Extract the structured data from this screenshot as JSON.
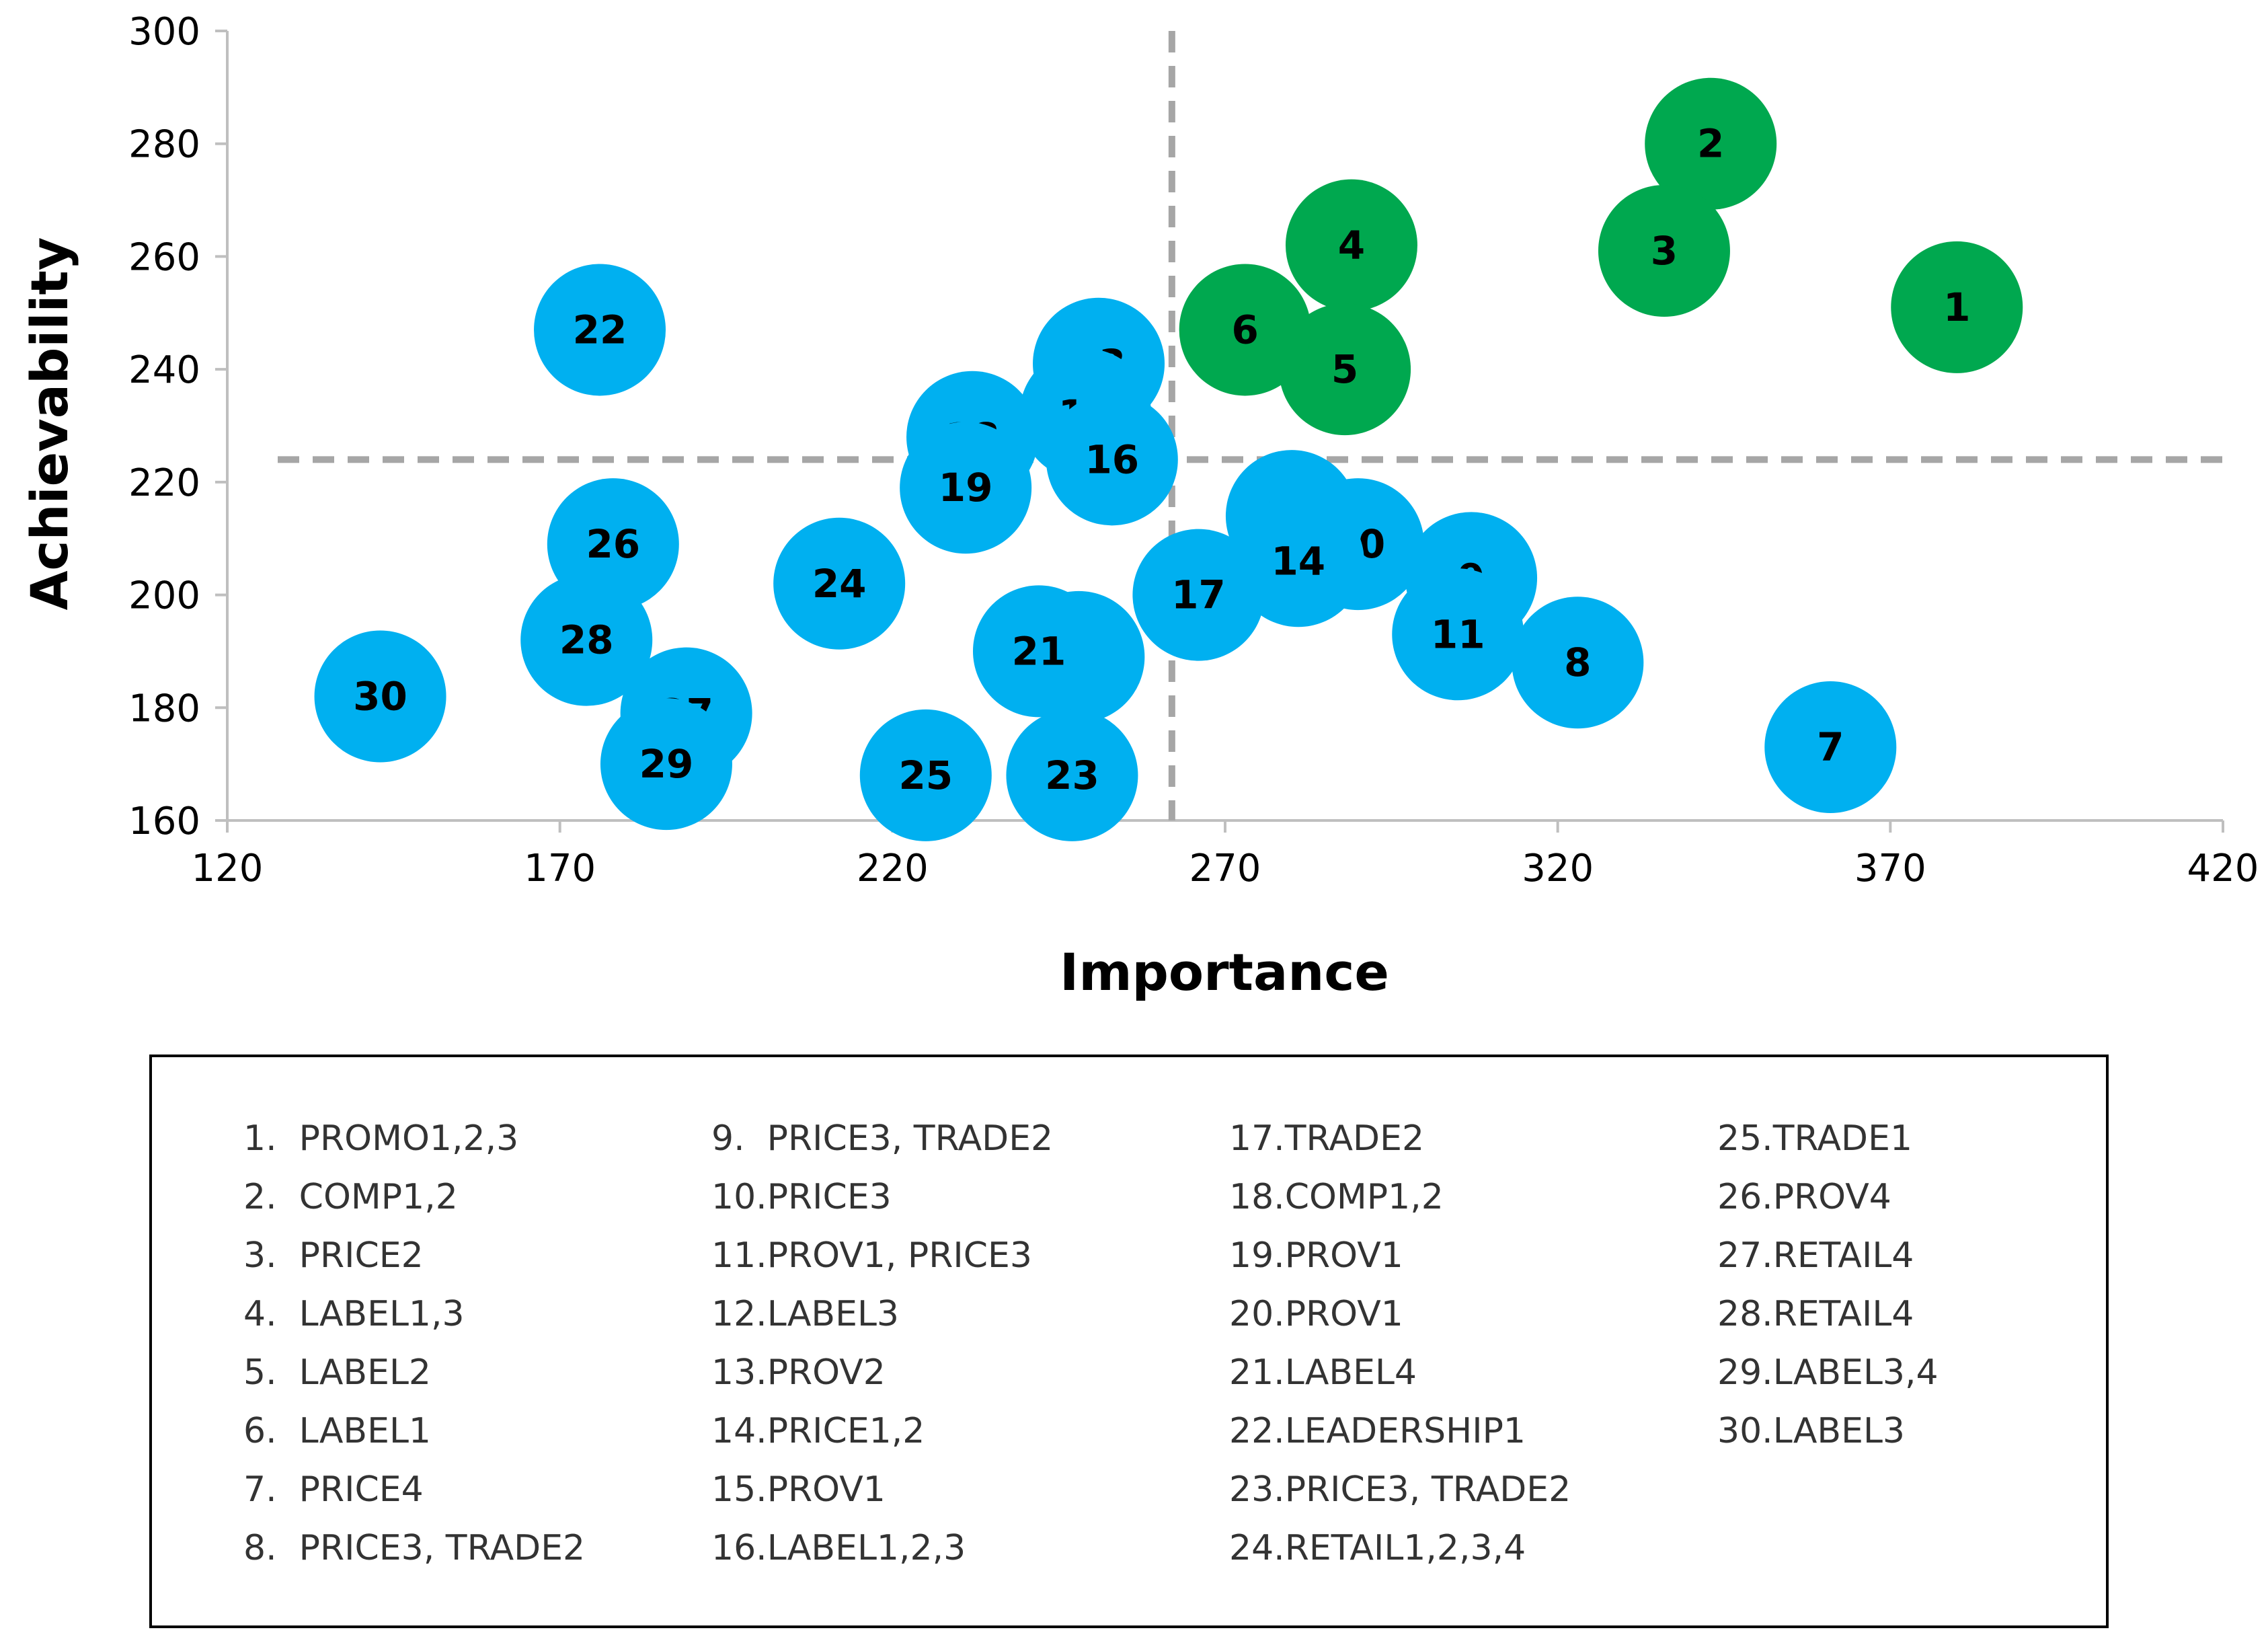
{
  "chart_data": {
    "type": "scatter",
    "subtype": "bubble",
    "xlabel": "Importance",
    "ylabel": "Achievability",
    "xlim": [
      120,
      420
    ],
    "ylim": [
      160,
      300
    ],
    "xticks": [
      "120",
      "170",
      "220",
      "270",
      "320",
      "370",
      "420"
    ],
    "yticks": [
      "160",
      "180",
      "200",
      "220",
      "240",
      "260",
      "280",
      "300"
    ],
    "reference_lines": {
      "x": 262,
      "y": 224
    },
    "colors": {
      "high": "#00a84f",
      "low": "#00b0f0",
      "refline": "#a6a6a6",
      "axis": "#bfbfbf"
    },
    "points": [
      {
        "id": "1",
        "x": 380,
        "y": 251,
        "group": "high"
      },
      {
        "id": "2",
        "x": 343,
        "y": 280,
        "group": "high"
      },
      {
        "id": "3",
        "x": 336,
        "y": 261,
        "group": "high"
      },
      {
        "id": "4",
        "x": 289,
        "y": 262,
        "group": "high"
      },
      {
        "id": "5",
        "x": 288,
        "y": 240,
        "group": "high"
      },
      {
        "id": "6",
        "x": 273,
        "y": 247,
        "group": "high"
      },
      {
        "id": "7",
        "x": 361,
        "y": 173,
        "group": "low"
      },
      {
        "id": "8",
        "x": 323,
        "y": 188,
        "group": "low"
      },
      {
        "id": "9",
        "x": 307,
        "y": 203,
        "group": "low"
      },
      {
        "id": "10",
        "x": 290,
        "y": 209,
        "group": "low"
      },
      {
        "id": "11",
        "x": 305,
        "y": 193,
        "group": "low"
      },
      {
        "id": "12",
        "x": 280,
        "y": 214,
        "group": "low"
      },
      {
        "id": "13",
        "x": 251,
        "y": 241,
        "group": "low"
      },
      {
        "id": "14",
        "x": 281,
        "y": 206,
        "group": "low"
      },
      {
        "id": "15",
        "x": 249,
        "y": 232,
        "group": "low"
      },
      {
        "id": "16",
        "x": 253,
        "y": 224,
        "group": "low"
      },
      {
        "id": "17",
        "x": 266,
        "y": 200,
        "group": "low"
      },
      {
        "id": "18",
        "x": 232,
        "y": 228,
        "group": "low"
      },
      {
        "id": "19",
        "x": 231,
        "y": 219,
        "group": "low"
      },
      {
        "id": "20",
        "x": 248,
        "y": 189,
        "group": "low"
      },
      {
        "id": "21",
        "x": 242,
        "y": 190,
        "group": "low"
      },
      {
        "id": "22",
        "x": 176,
        "y": 247,
        "group": "low"
      },
      {
        "id": "23",
        "x": 247,
        "y": 168,
        "group": "low"
      },
      {
        "id": "24",
        "x": 212,
        "y": 202,
        "group": "low"
      },
      {
        "id": "25",
        "x": 225,
        "y": 168,
        "group": "low"
      },
      {
        "id": "26",
        "x": 178,
        "y": 209,
        "group": "low"
      },
      {
        "id": "27",
        "x": 189,
        "y": 179,
        "group": "low"
      },
      {
        "id": "28",
        "x": 174,
        "y": 192,
        "group": "low"
      },
      {
        "id": "29",
        "x": 186,
        "y": 170,
        "group": "low"
      },
      {
        "id": "30",
        "x": 143,
        "y": 182,
        "group": "low"
      }
    ]
  },
  "legend": {
    "columns": [
      [
        "1.  PROMO1,2,3",
        "2.  COMP1,2",
        "3.  PRICE2",
        "4.  LABEL1,3",
        "5.  LABEL2",
        "6.  LABEL1",
        "7.  PRICE4",
        "8.  PRICE3, TRADE2"
      ],
      [
        "9.  PRICE3, TRADE2",
        "10.PRICE3",
        "11.PROV1, PRICE3",
        "12.LABEL3",
        "13.PROV2",
        "14.PRICE1,2",
        "15.PROV1",
        "16.LABEL1,2,3"
      ],
      [
        "17.TRADE2",
        "18.COMP1,2",
        "19.PROV1",
        "20.PROV1",
        "21.LABEL4",
        "22.LEADERSHIP1",
        "23.PRICE3, TRADE2",
        "24.RETAIL1,2,3,4"
      ],
      [
        "25.TRADE1",
        "26.PROV4",
        "27.RETAIL4",
        "28.RETAIL4",
        "29.LABEL3,4",
        "30.LABEL3"
      ]
    ]
  }
}
